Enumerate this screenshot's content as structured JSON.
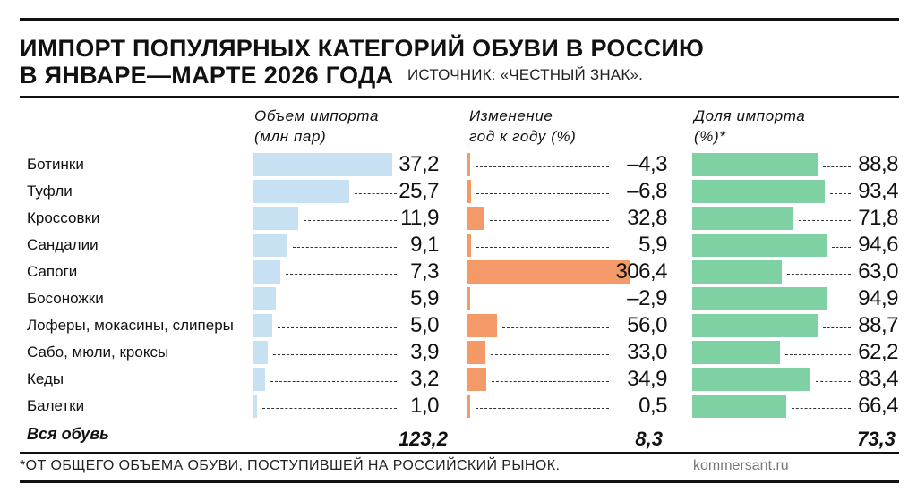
{
  "title_line1": "ИМПОРТ ПОПУЛЯРНЫХ КАТЕГОРИЙ ОБУВИ В РОССИЮ",
  "title_line2": "В ЯНВАРЕ—МАРТЕ 2026 ГОДА",
  "source": "ИСТОЧНИК: «ЧЕСТНЫЙ ЗНАК».",
  "footnote": "*ОТ ОБЩЕГО ОБЪЕМА ОБУВИ, ПОСТУПИВШЕЙ НА РОССИЙСКИЙ РЫНОК.",
  "credit": "kommersant.ru",
  "total": {
    "label": "Вся обувь",
    "volume": "123,2",
    "change": "8,3",
    "share": "73,3"
  },
  "colors": {
    "volume": "#c7e1f2",
    "change": "#f39a68",
    "share": "#7fd1a3"
  },
  "chart_data": {
    "type": "bar",
    "categories": [
      "Ботинки",
      "Туфли",
      "Кроссовки",
      "Сандалии",
      "Сапоги",
      "Босоножки",
      "Лоферы, мокасины, слиперы",
      "Сабо, мюли, кроксы",
      "Кеды",
      "Балетки"
    ],
    "series": [
      {
        "name": "Объем импорта (млн пар)",
        "key": "volume",
        "labels": [
          "37,2",
          "25,7",
          "11,9",
          "9,1",
          "7,3",
          "5,9",
          "5,0",
          "3,9",
          "3,2",
          "1,0"
        ],
        "values": [
          37.2,
          25.7,
          11.9,
          9.1,
          7.3,
          5.9,
          5.0,
          3.9,
          3.2,
          1.0
        ]
      },
      {
        "name": "Изменение год к году (%)",
        "key": "change",
        "labels": [
          "–4,3",
          "–6,8",
          "32,8",
          "5,9",
          "306,4",
          "–2,9",
          "56,0",
          "33,0",
          "34,9",
          "0,5"
        ],
        "values": [
          -4.3,
          -6.8,
          32.8,
          5.9,
          306.4,
          -2.9,
          56.0,
          33.0,
          34.9,
          0.5
        ]
      },
      {
        "name": "Доля импорта (%)*",
        "key": "share",
        "labels": [
          "88,8",
          "93,4",
          "71,8",
          "94,6",
          "63,0",
          "94,9",
          "88,7",
          "62,2",
          "83,4",
          "66,4"
        ],
        "values": [
          88.8,
          93.4,
          71.8,
          94.6,
          63.0,
          94.9,
          88.7,
          62.2,
          83.4,
          66.4
        ]
      }
    ],
    "headers": {
      "volume": [
        "Объем импорта",
        "(млн пар)"
      ],
      "change": [
        "Изменение",
        "год к году (%)"
      ],
      "share": [
        "Доля импорта",
        "(%)*"
      ]
    }
  }
}
